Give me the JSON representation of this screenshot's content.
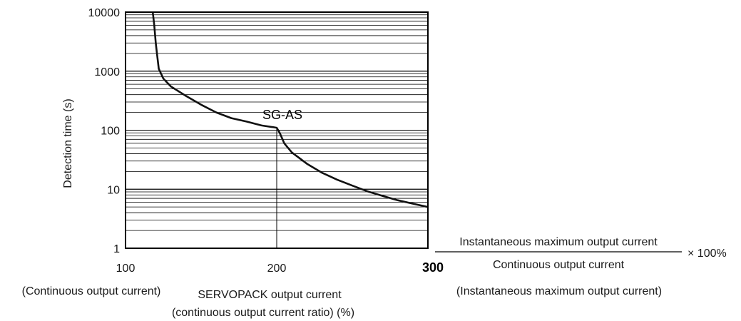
{
  "chart_data": {
    "type": "line",
    "title": "",
    "ylabel": "Detection time (s)",
    "xlabel": "SERVOPACK output current",
    "xlabel_line2": "(continuous output current ratio) (%)",
    "x_scale": "linear",
    "y_scale": "log",
    "xlim": [
      100,
      300
    ],
    "ylim": [
      1,
      10000
    ],
    "x_ticks": [
      "100",
      "200",
      "300"
    ],
    "y_ticks": [
      "1",
      "10",
      "100",
      "1000",
      "10000"
    ],
    "x_tick_notes": {
      "left": "(Continuous output current)",
      "right": "(Instantaneous maximum output current)"
    },
    "formula": {
      "numerator": "Instantaneous maximum output current",
      "denominator": "Continuous output current",
      "suffix": "× 100%"
    },
    "grid": true,
    "series": [
      {
        "name": "SG-AS",
        "x": [
          118,
          119,
          120,
          121,
          122,
          125,
          130,
          140,
          150,
          160,
          170,
          180,
          190,
          198,
          200,
          202,
          205,
          210,
          220,
          230,
          240,
          250,
          260,
          270,
          280,
          290,
          300
        ],
        "y": [
          10000,
          6000,
          3000,
          1800,
          1100,
          750,
          550,
          380,
          270,
          200,
          160,
          140,
          120,
          112,
          110,
          90,
          60,
          42,
          27,
          19,
          14.5,
          11.5,
          9.2,
          7.7,
          6.5,
          5.7,
          5
        ]
      }
    ],
    "annotations": [
      {
        "type": "vline",
        "x": 200,
        "y_from": 1,
        "y_to": 110
      }
    ]
  }
}
